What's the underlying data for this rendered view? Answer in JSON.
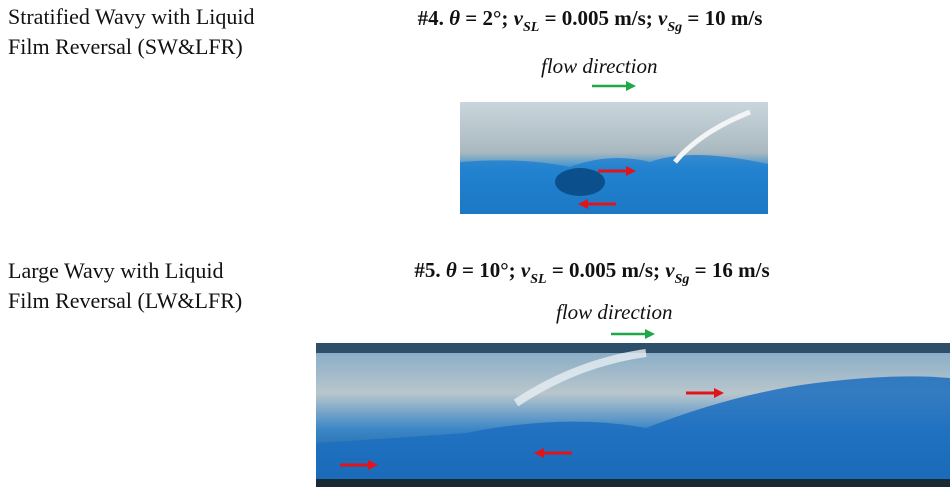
{
  "panels": [
    {
      "label_lines": [
        "Stratified Wavy with Liquid",
        "Film Reversal (SW&LFR)"
      ],
      "title_segments": [
        {
          "text": "#4. "
        },
        {
          "text": "θ",
          "style": "it"
        },
        {
          "text": " = 2°; "
        },
        {
          "text": "v",
          "style": "it"
        },
        {
          "text": "SL",
          "style": "sub"
        },
        {
          "text": " = 0.005 m/s; "
        },
        {
          "text": "v",
          "style": "it"
        },
        {
          "text": "Sg",
          "style": "sub"
        },
        {
          "text": " = 10 m/s"
        }
      ],
      "flow_label": "flow direction"
    },
    {
      "label_lines": [
        "Large Wavy with Liquid",
        "Film Reversal (LW&LFR)"
      ],
      "title_segments": [
        {
          "text": "#5. "
        },
        {
          "text": "θ",
          "style": "it"
        },
        {
          "text": " = 10°; "
        },
        {
          "text": "v",
          "style": "it"
        },
        {
          "text": "SL",
          "style": "sub"
        },
        {
          "text": " = 0.005 m/s; "
        },
        {
          "text": "v",
          "style": "it"
        },
        {
          "text": "Sg",
          "style": "sub"
        },
        {
          "text": " = 16 m/s"
        }
      ],
      "flow_label": "flow direction"
    }
  ]
}
